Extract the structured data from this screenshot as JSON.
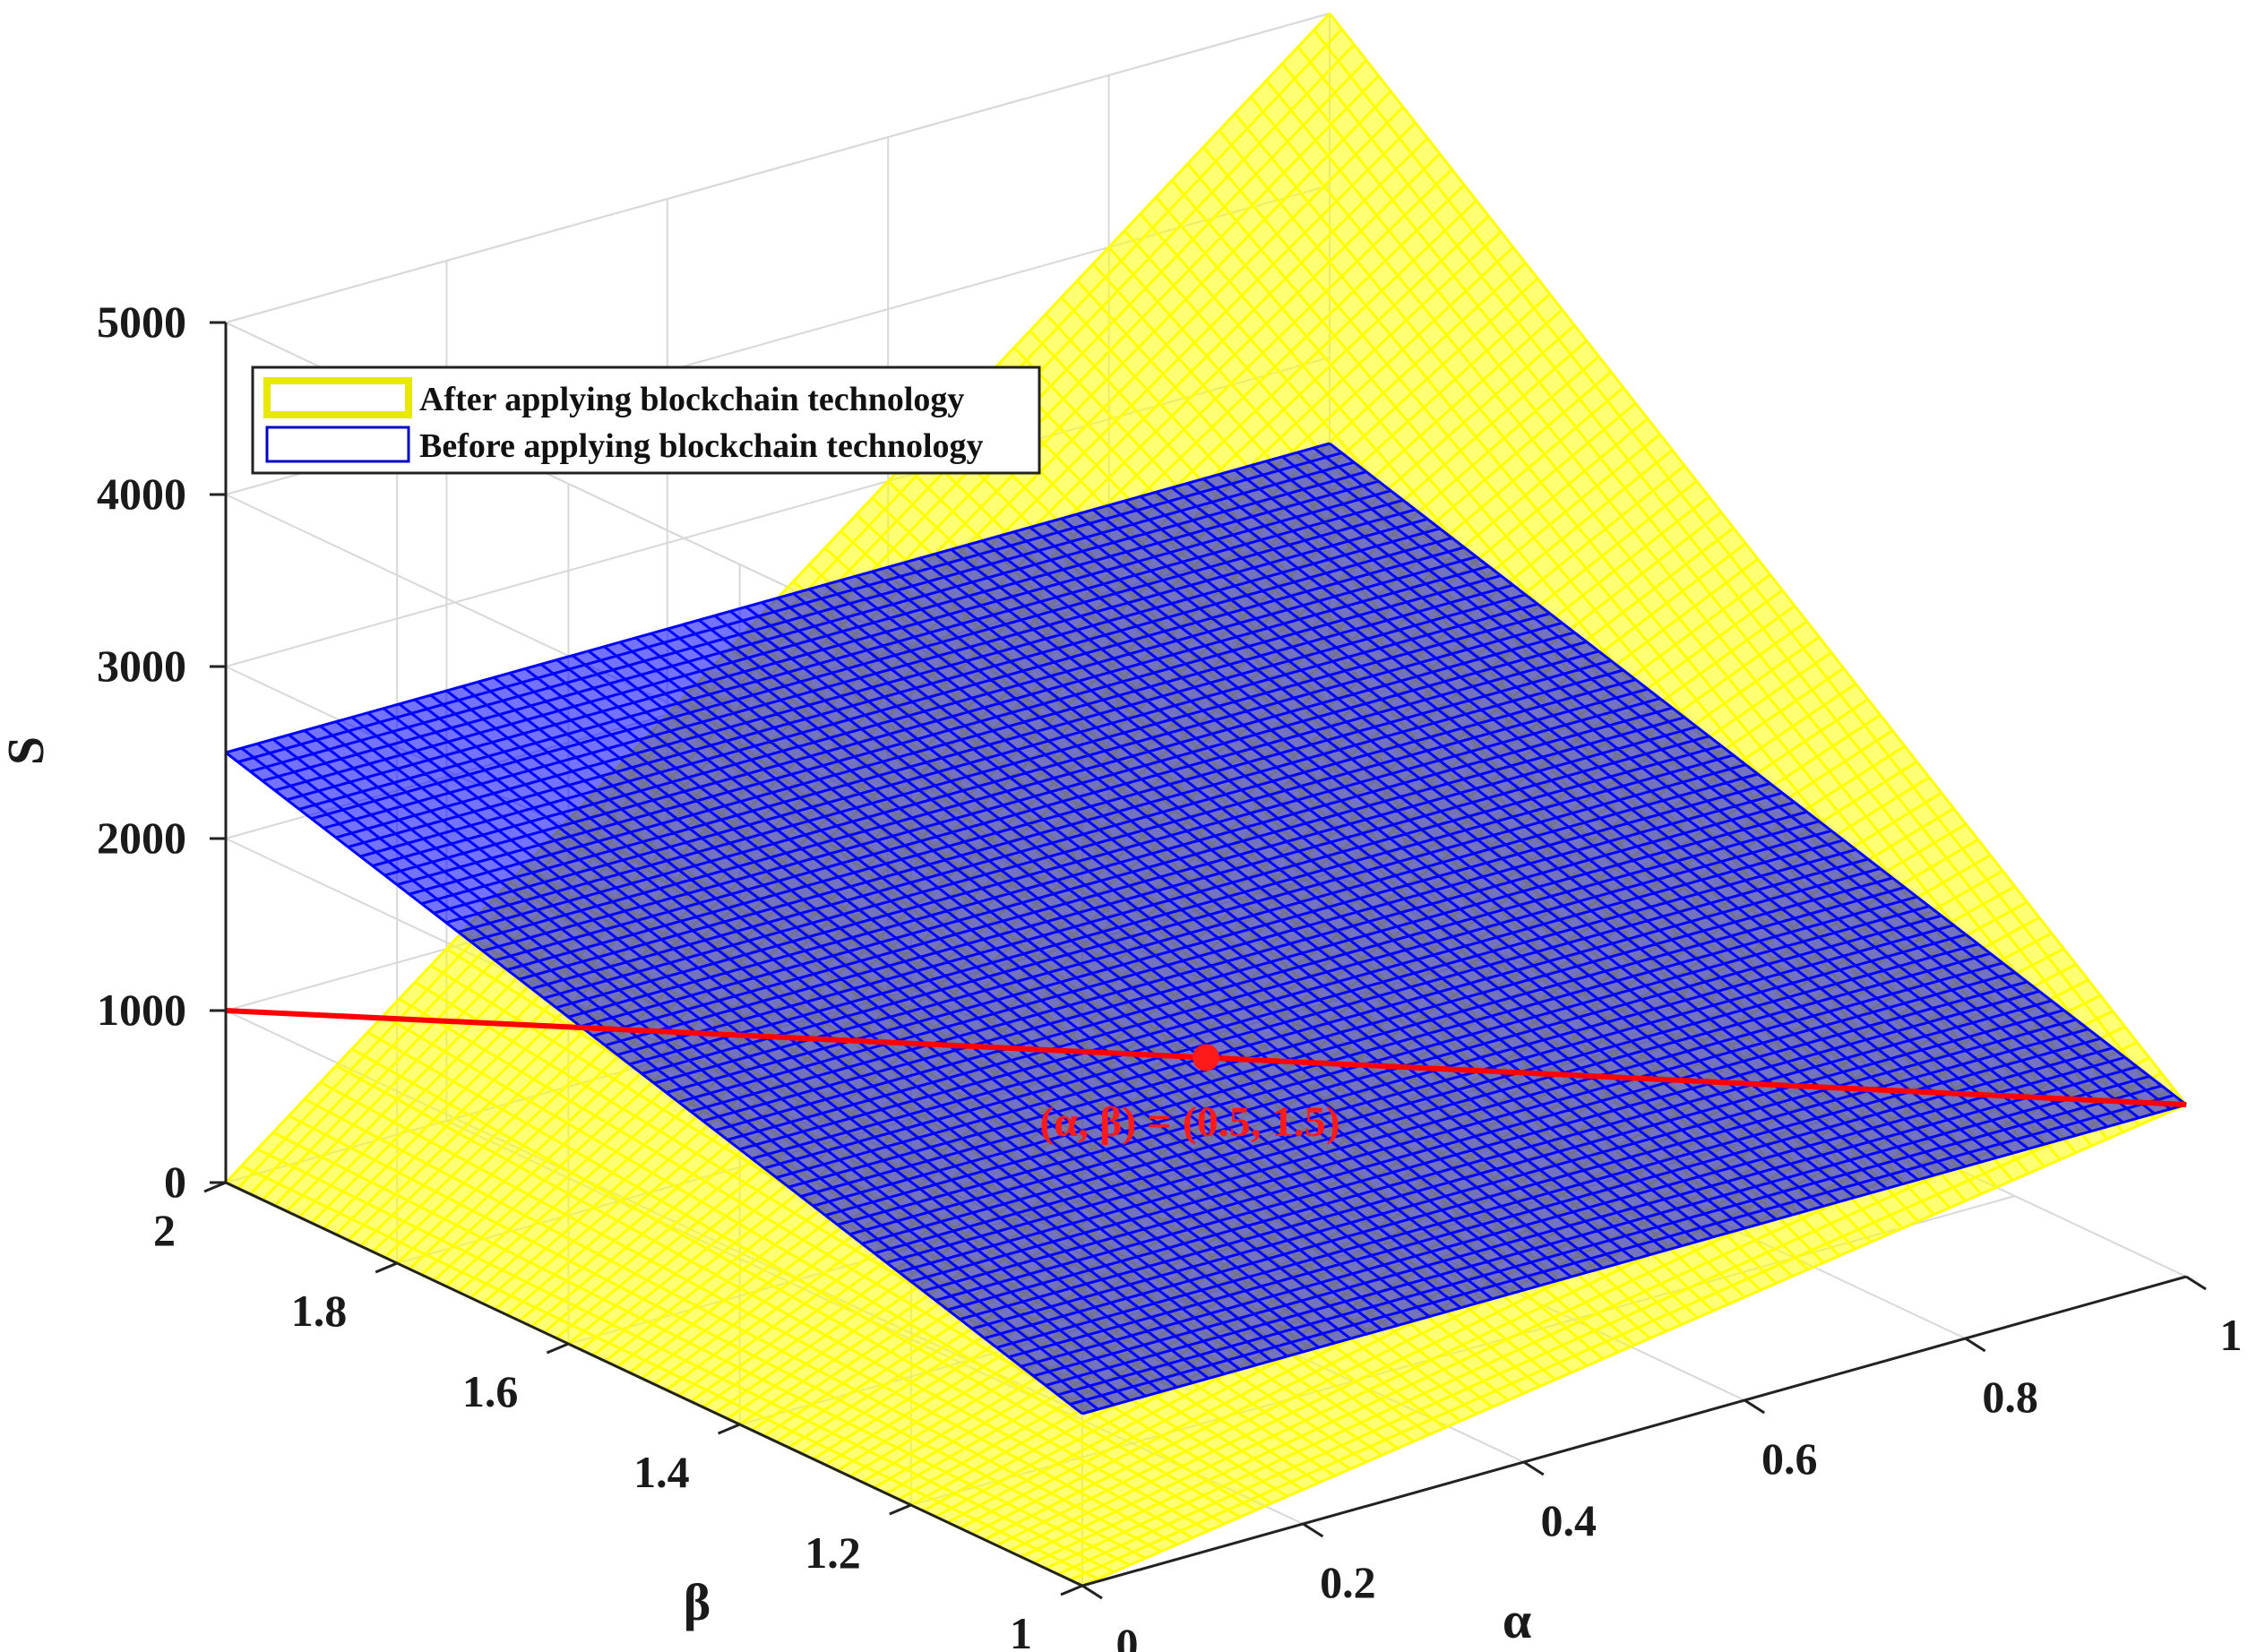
{
  "chart_data": {
    "type": "surface",
    "x_axis": {
      "label": "α",
      "range": [
        0,
        1
      ],
      "ticks": [
        0,
        0.2,
        0.4,
        0.6,
        0.8,
        1
      ],
      "tick_labels": [
        "0",
        "0.2",
        "0.4",
        "0.6",
        "0.8",
        "1"
      ]
    },
    "y_axis": {
      "label": "β",
      "range": [
        1,
        2
      ],
      "ticks": [
        1,
        1.2,
        1.4,
        1.6,
        1.8,
        2
      ],
      "tick_labels": [
        "1",
        "1.2",
        "1.4",
        "1.6",
        "1.8",
        "2"
      ]
    },
    "z_axis": {
      "label": "S",
      "range": [
        0,
        5000
      ],
      "ticks": [
        0,
        1000,
        2000,
        3000,
        4000,
        5000
      ],
      "tick_labels": [
        "0",
        "1000",
        "2000",
        "3000",
        "4000",
        "5000"
      ]
    },
    "grid": true,
    "legend": {
      "placement": "top-left",
      "entries": [
        {
          "name": "After applying blockchain technology",
          "color": "#ffff33",
          "edge_color": "#e6e600"
        },
        {
          "name": "Before applying blockchain technology",
          "color": "#0000ee",
          "edge_color": "#0000cc"
        }
      ]
    },
    "series": [
      {
        "name": "After applying blockchain technology",
        "color": "#ffff00",
        "corners": [
          {
            "alpha": 0,
            "beta": 1,
            "S": 0
          },
          {
            "alpha": 1,
            "beta": 1,
            "S": 1000
          },
          {
            "alpha": 0,
            "beta": 2,
            "S": 0
          },
          {
            "alpha": 1,
            "beta": 2,
            "S": 5000
          }
        ]
      },
      {
        "name": "Before applying blockchain technology",
        "color": "#0000ff",
        "corners": [
          {
            "alpha": 0,
            "beta": 1,
            "S": 1000
          },
          {
            "alpha": 1,
            "beta": 1,
            "S": 1000
          },
          {
            "alpha": 0,
            "beta": 2,
            "S": 2500
          },
          {
            "alpha": 1,
            "beta": 2,
            "S": 2500
          }
        ]
      }
    ],
    "intersection_line": {
      "color": "#ff0000",
      "points": [
        {
          "alpha": 0,
          "beta": 2,
          "S": 1000
        },
        {
          "alpha": 1,
          "beta": 1,
          "S": 1000
        }
      ]
    },
    "annotation": {
      "text": "(α, β) = (0.5, 1.5)",
      "point": {
        "alpha": 0.5,
        "beta": 1.5,
        "S": 1000
      },
      "color": "#ff1a1a"
    }
  }
}
